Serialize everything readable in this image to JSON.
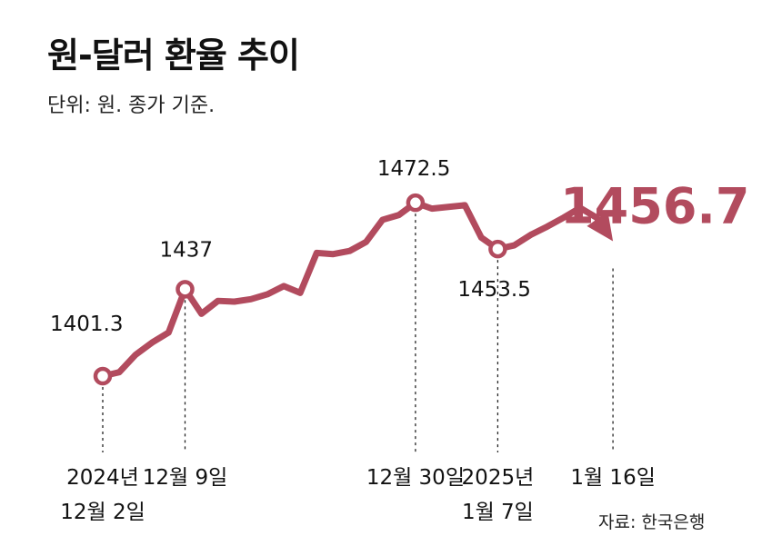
{
  "title": "원-달러 환율 추이",
  "subtitle": "단위: 원. 종가 기준.",
  "source": "자료: 한국은행",
  "colors": {
    "line": "#b24b5e",
    "text": "#111111"
  },
  "chart_data": {
    "type": "line",
    "x": [
      "2024-12-02",
      "2024-12-03",
      "2024-12-04",
      "2024-12-05",
      "2024-12-06",
      "2024-12-09",
      "2024-12-10",
      "2024-12-11",
      "2024-12-12",
      "2024-12-13",
      "2024-12-16",
      "2024-12-17",
      "2024-12-18",
      "2024-12-19",
      "2024-12-20",
      "2024-12-23",
      "2024-12-24",
      "2024-12-26",
      "2024-12-27",
      "2024-12-30",
      "2024-12-31",
      "2025-01-02",
      "2025-01-03",
      "2025-01-06",
      "2025-01-07",
      "2025-01-08",
      "2025-01-09",
      "2025-01-10",
      "2025-01-13",
      "2025-01-14",
      "2025-01-15",
      "2025-01-16"
    ],
    "values": [
      1401.3,
      1402.9,
      1410.1,
      1415.1,
      1419.2,
      1437.0,
      1426.9,
      1432.2,
      1431.9,
      1432.9,
      1434.9,
      1438.3,
      1435.5,
      1451.9,
      1451.4,
      1452.7,
      1456.4,
      1465.5,
      1467.5,
      1472.5,
      1470.1,
      1470.8,
      1471.5,
      1458.2,
      1453.5,
      1455.0,
      1459.3,
      1462.7,
      1466.4,
      1470.4,
      1466.4,
      1456.7
    ],
    "tick_labels": [
      {
        "lines": [
          "2024년",
          "12월 2일"
        ]
      },
      {
        "lines": [
          "12월 9일"
        ]
      },
      {
        "lines": [
          "12월 30일"
        ]
      },
      {
        "lines": [
          "2025년",
          "1월 7일"
        ]
      },
      {
        "lines": [
          "1월 16일"
        ]
      }
    ],
    "annotations": [
      {
        "label": "1401.3"
      },
      {
        "label": "1437"
      },
      {
        "label": "1472.5"
      },
      {
        "label": "1453.5"
      },
      {
        "label": "1456.7"
      }
    ]
  }
}
